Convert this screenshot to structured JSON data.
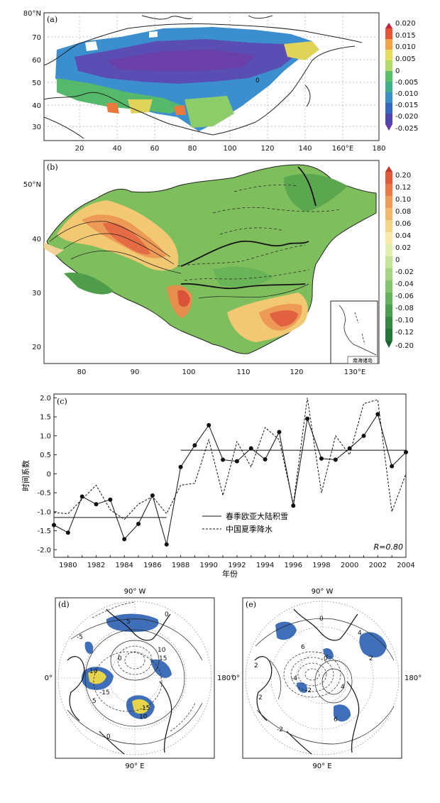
{
  "panel_a": {
    "label": "(a)",
    "lat_ticks": [
      "80°N",
      "70",
      "60",
      "50",
      "40",
      "30"
    ],
    "lon_ticks": [
      "20",
      "40",
      "60",
      "80",
      "100",
      "120",
      "140",
      "160°E",
      "180"
    ],
    "colorbar": [
      "0.020",
      "0.015",
      "0.010",
      "0.005",
      "0",
      "-0.005",
      "-0.010",
      "-0.015",
      "-0.020",
      "-0.025"
    ],
    "contour_label": "0"
  },
  "panel_b": {
    "label": "(b)",
    "lat_ticks": [
      "50°N",
      "40",
      "30",
      "20"
    ],
    "lon_ticks": [
      "80",
      "90",
      "100",
      "110",
      "120",
      "130°E"
    ],
    "colorbar": [
      "0.20",
      "0.12",
      "0.10",
      "0.08",
      "0.06",
      "0.04",
      "0.02",
      "0",
      "-0.02",
      "-0.04",
      "-0.06",
      "-0.08",
      "-0.10",
      "-0.12",
      "-0.20"
    ],
    "inset_label": "南海诸岛"
  },
  "panel_c": {
    "label": "(c)",
    "ylabel": "时间系数",
    "xlabel": "年份",
    "r_label": "R=0.80",
    "legend": [
      "春季欧亚大陆积雪",
      "中国夏季降水"
    ]
  },
  "panel_d": {
    "label": "(d)",
    "top": "90° W",
    "bottom": "90° E",
    "left": "0°",
    "right": "180°",
    "contour_labels": [
      "5",
      "10",
      "15",
      "-15",
      "5",
      "10",
      "0",
      "15",
      "10",
      "0",
      "-5",
      "0"
    ]
  },
  "panel_e": {
    "label": "(e)",
    "top": "90° W",
    "bottom": "90° E",
    "left": "0°",
    "right": "180°",
    "contour_labels": [
      "2",
      "4",
      "6",
      "-2",
      "0",
      "2",
      "-4",
      "6",
      "2",
      "0",
      "4",
      "-2"
    ]
  },
  "chart_data": [
    {
      "type": "line",
      "panel": "(c)",
      "x": [
        1979,
        1980,
        1981,
        1982,
        1983,
        1984,
        1985,
        1986,
        1987,
        1988,
        1989,
        1990,
        1991,
        1992,
        1993,
        1994,
        1995,
        1996,
        1997,
        1998,
        1999,
        2000,
        2001,
        2002,
        2003,
        2004
      ],
      "xticks": [
        "1980",
        "1982",
        "1984",
        "1986",
        "1988",
        "1990",
        "1992",
        "1994",
        "1996",
        "1998",
        "2000",
        "2002",
        "2004"
      ],
      "yticks": [
        "2.0",
        "1.5",
        "1.0",
        "0.5",
        "0",
        "-0.5",
        "-1.0",
        "-1.5",
        "-2.0"
      ],
      "xlim": [
        1979,
        2004
      ],
      "ylim": [
        -2.2,
        2.1
      ],
      "xlabel": "年份",
      "ylabel": "时间系数",
      "series": [
        {
          "name": "春季欧亚大陆积雪",
          "style": "solid-dot",
          "values": [
            -1.35,
            -1.55,
            -0.6,
            -0.8,
            -0.68,
            -1.72,
            -1.32,
            -0.57,
            -1.86,
            0.18,
            0.75,
            1.28,
            0.37,
            0.33,
            0.67,
            0.38,
            1.1,
            -0.84,
            1.45,
            0.4,
            0.37,
            0.67,
            1.0,
            1.57,
            0.2,
            0.57
          ]
        },
        {
          "name": "中国夏季降水",
          "style": "dashed",
          "values": [
            -1.02,
            -1.05,
            -0.67,
            -0.3,
            -0.95,
            -1.2,
            -0.8,
            -0.6,
            -1.05,
            -0.3,
            -0.25,
            0.9,
            -0.57,
            0.85,
            0.18,
            1.22,
            0.9,
            -0.8,
            2.0,
            -0.5,
            1.0,
            0.5,
            1.85,
            1.95,
            -1.0,
            0.0
          ]
        }
      ],
      "step_mean": {
        "segments": [
          {
            "x": [
              1979,
              1987
            ],
            "y": -1.15
          },
          {
            "x": [
              1988,
              2004
            ],
            "y": 0.62
          }
        ]
      },
      "annotation": "R=0.80"
    }
  ]
}
